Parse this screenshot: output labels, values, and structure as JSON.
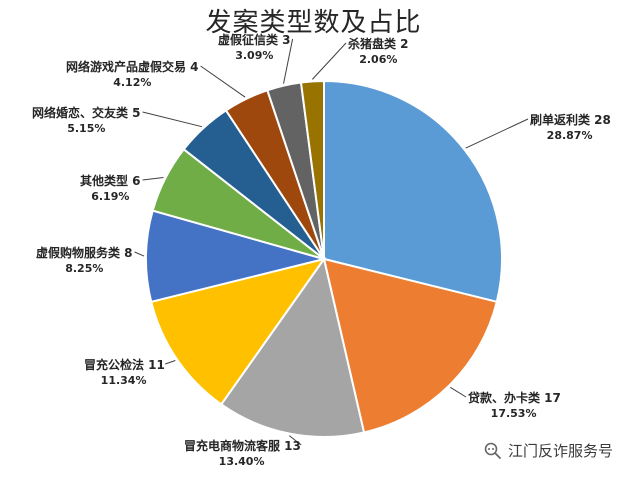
{
  "chart_data": {
    "type": "pie",
    "title": "发案类型数及占比",
    "slices": [
      {
        "name": "刷单返利类",
        "value": 28,
        "percent": "28.87%",
        "color": "#5b9bd5"
      },
      {
        "name": "贷款、办卡类",
        "value": 17,
        "percent": "17.53%",
        "color": "#ed7d31"
      },
      {
        "name": "冒充电商物流客服",
        "value": 13,
        "percent": "13.40%",
        "color": "#a5a5a5"
      },
      {
        "name": "冒充公检法",
        "value": 11,
        "percent": "11.34%",
        "color": "#ffc000"
      },
      {
        "name": "虚假购物服务类",
        "value": 8,
        "percent": "8.25%",
        "color": "#4472c4"
      },
      {
        "name": "其他类型",
        "value": 6,
        "percent": "6.19%",
        "color": "#70ad47"
      },
      {
        "name": "网络婚恋、交友类",
        "value": 5,
        "percent": "5.15%",
        "color": "#255e91"
      },
      {
        "name": "网络游戏产品虚假交易",
        "value": 4,
        "percent": "4.12%",
        "color": "#9e480e"
      },
      {
        "name": "虚假征信类",
        "value": 3,
        "percent": "3.09%",
        "color": "#636363"
      },
      {
        "name": "杀猪盘类",
        "value": 2,
        "percent": "2.06%",
        "color": "#997300"
      }
    ]
  },
  "watermark": {
    "text": "江门反诈服务号",
    "icon": "wechat-search-icon"
  }
}
